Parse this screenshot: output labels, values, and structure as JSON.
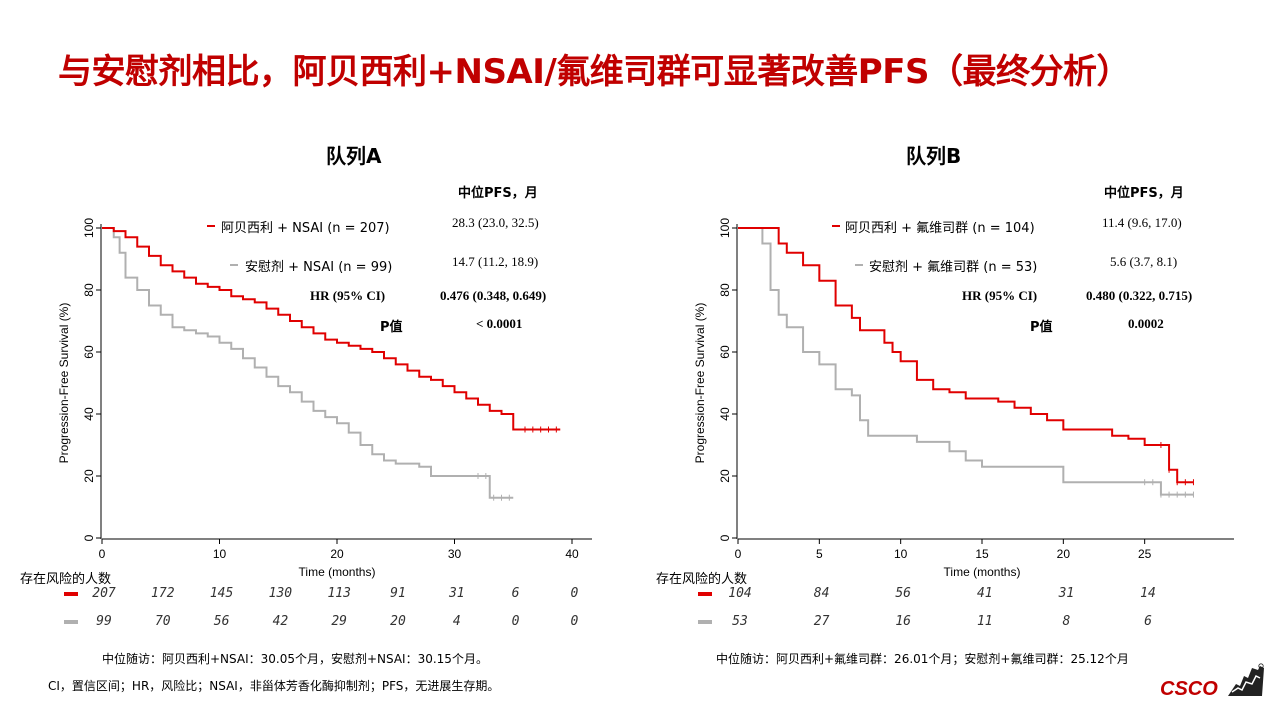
{
  "slide": {
    "title": "与安慰剂相比，阿贝西利+NSAI/氟维司群可显著改善PFS（最终分析）",
    "logo_text": "CSCO",
    "colors": {
      "title": "#c00000",
      "treatment": "#e00000",
      "placebo": "#b0b0b0"
    }
  },
  "cohort_a": {
    "title": "队列A",
    "stats_header": "中位PFS，月",
    "legend_treat": "阿贝西利 + NSAI (n = 207)",
    "legend_placebo": "安慰剂 + NSAI (n = 99)",
    "treat_median": "28.3 (23.0, 32.5)",
    "placebo_median": "14.7 (11.2, 18.9)",
    "hr_label": "HR (95% CI)",
    "hr_value": "0.476 (0.348, 0.649)",
    "p_label": "P值",
    "p_value": "< 0.0001",
    "risk_header": "存在风险的人数",
    "risk_treat": [
      "207",
      "172",
      "145",
      "130",
      "113",
      "91",
      "31",
      "6",
      "0"
    ],
    "risk_placebo": [
      "99",
      "70",
      "56",
      "42",
      "29",
      "20",
      "4",
      "0",
      "0"
    ],
    "followup": "中位随访：阿贝西利+NSAI：30.05个月，安慰剂+NSAI：30.15个月。",
    "abbrev": "CI，置信区间；HR，风险比；NSAI，非甾体芳香化酶抑制剂；PFS，无进展生存期。"
  },
  "cohort_b": {
    "title": "队列B",
    "stats_header": "中位PFS，月",
    "legend_treat": "阿贝西利 + 氟维司群 (n = 104)",
    "legend_placebo": "安慰剂 + 氟维司群 (n = 53)",
    "treat_median": "11.4 (9.6, 17.0)",
    "placebo_median": "5.6 (3.7, 8.1)",
    "hr_label": "HR (95% CI)",
    "hr_value": "0.480 (0.322, 0.715)",
    "p_label": "P值",
    "p_value": "0.0002",
    "risk_header": "存在风险的人数",
    "risk_treat": [
      "104",
      "84",
      "56",
      "41",
      "31",
      "14"
    ],
    "risk_placebo": [
      "53",
      "27",
      "16",
      "11",
      "8",
      "6"
    ],
    "followup": "中位随访：阿贝西利+氟维司群：26.01个月；安慰剂+氟维司群：25.12个月"
  },
  "chart_data": [
    {
      "type": "line",
      "xlabel": "Time (months)",
      "ylabel": "Progression-Free Survival (%)",
      "xlim": [
        0,
        40
      ],
      "ylim": [
        0,
        100
      ],
      "xticks": [
        0,
        10,
        20,
        30,
        40
      ],
      "yticks": [
        0,
        20,
        40,
        60,
        80,
        100
      ],
      "series": [
        {
          "name": "阿贝西利 + NSAI",
          "color": "#e00000",
          "x": [
            0,
            1,
            2,
            3,
            4,
            5,
            6,
            7,
            8,
            9,
            10,
            11,
            12,
            13,
            14,
            15,
            16,
            17,
            18,
            19,
            20,
            21,
            22,
            23,
            24,
            25,
            26,
            27,
            28,
            29,
            30,
            31,
            32,
            33,
            34,
            35,
            36,
            37,
            38,
            39
          ],
          "y": [
            100,
            99,
            97,
            94,
            91,
            88,
            86,
            84,
            82,
            81,
            80,
            78,
            77,
            76,
            74,
            72,
            70,
            68,
            66,
            64,
            63,
            62,
            61,
            60,
            58,
            56,
            54,
            52,
            51,
            49,
            47,
            45,
            43,
            41,
            40,
            35,
            35,
            35,
            35,
            35
          ]
        },
        {
          "name": "安慰剂 + NSAI",
          "color": "#b0b0b0",
          "x": [
            0,
            1,
            1.5,
            2,
            3,
            4,
            5,
            6,
            7,
            8,
            9,
            10,
            11,
            12,
            13,
            14,
            15,
            16,
            17,
            18,
            19,
            20,
            21,
            22,
            23,
            24,
            25,
            26,
            27,
            28,
            29,
            30,
            31,
            32,
            33,
            34,
            35
          ],
          "y": [
            100,
            97,
            92,
            84,
            80,
            75,
            72,
            68,
            67,
            66,
            65,
            63,
            61,
            58,
            55,
            52,
            49,
            47,
            44,
            41,
            39,
            37,
            34,
            30,
            27,
            25,
            24,
            24,
            23,
            20,
            20,
            20,
            20,
            20,
            13,
            13,
            13
          ]
        }
      ]
    },
    {
      "type": "line",
      "xlabel": "Time (months)",
      "ylabel": "Progression-Free Survival (%)",
      "xlim": [
        0,
        30
      ],
      "ylim": [
        0,
        100
      ],
      "xticks": [
        0,
        5,
        10,
        15,
        20,
        25
      ],
      "yticks": [
        0,
        20,
        40,
        60,
        80,
        100
      ],
      "series": [
        {
          "name": "阿贝西利 + 氟维司群",
          "color": "#e00000",
          "x": [
            0,
            1,
            2,
            2.5,
            3,
            4,
            5,
            6,
            6.5,
            7,
            7.5,
            8,
            9,
            9.5,
            10,
            11,
            12,
            13,
            14,
            15,
            16,
            17,
            18,
            19,
            20,
            21,
            22,
            23,
            24,
            25,
            26,
            26.5,
            27,
            28
          ],
          "y": [
            100,
            100,
            100,
            95,
            92,
            88,
            83,
            75,
            75,
            71,
            67,
            67,
            63,
            60,
            57,
            51,
            48,
            47,
            45,
            45,
            44,
            42,
            40,
            38,
            35,
            35,
            35,
            33,
            32,
            30,
            30,
            22,
            18,
            18
          ]
        },
        {
          "name": "安慰剂 + 氟维司群",
          "color": "#b0b0b0",
          "x": [
            0,
            1,
            1.5,
            2,
            2.5,
            3,
            4,
            5,
            6,
            7,
            7.5,
            8,
            9,
            10,
            11,
            12,
            13,
            14,
            15,
            16,
            17,
            18,
            19,
            20,
            21,
            22,
            23,
            24,
            25,
            26,
            27,
            28
          ],
          "y": [
            100,
            100,
            95,
            80,
            72,
            68,
            60,
            56,
            48,
            46,
            38,
            33,
            33,
            33,
            31,
            31,
            28,
            25,
            23,
            23,
            23,
            23,
            23,
            18,
            18,
            18,
            18,
            18,
            18,
            14,
            14,
            14
          ]
        }
      ]
    }
  ]
}
